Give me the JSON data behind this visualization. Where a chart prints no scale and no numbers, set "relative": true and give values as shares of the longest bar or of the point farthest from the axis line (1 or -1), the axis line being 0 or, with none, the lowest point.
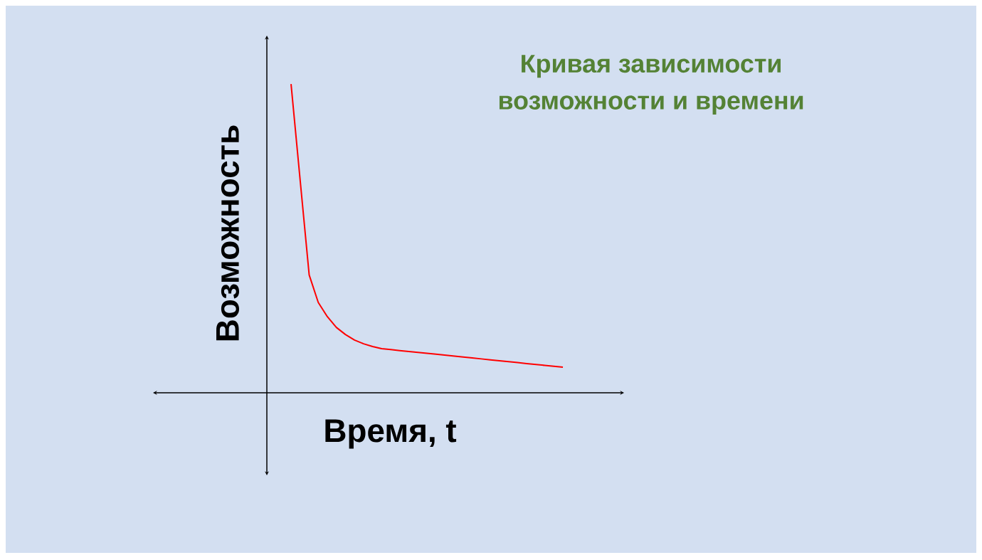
{
  "chart_data": {
    "type": "line",
    "title": "Кривая зависимости возможности и времени",
    "xlabel": "Время, t",
    "ylabel": "Возможность",
    "relative": true,
    "categories": [
      null,
      null,
      null,
      null,
      null,
      null,
      null,
      null,
      null,
      null,
      null,
      null,
      null,
      null,
      null,
      null,
      null,
      null,
      null,
      null,
      null,
      null,
      null,
      null,
      null,
      null,
      null,
      null,
      null,
      null,
      null
    ],
    "series": [
      {
        "color": "#ff0000",
        "values": [
          1.0,
          0.69,
          0.382,
          0.293,
          0.247,
          0.212,
          0.189,
          0.171,
          0.159,
          0.15,
          0.143,
          0.14,
          0.137,
          0.134,
          0.131,
          0.128,
          0.125,
          0.122,
          0.119,
          0.116,
          0.113,
          0.11,
          0.107,
          0.104,
          0.101,
          0.098,
          0.095,
          0.092,
          0.089,
          0.086,
          0.083
        ]
      }
    ],
    "marker": "none",
    "line_style": "solid"
  }
}
